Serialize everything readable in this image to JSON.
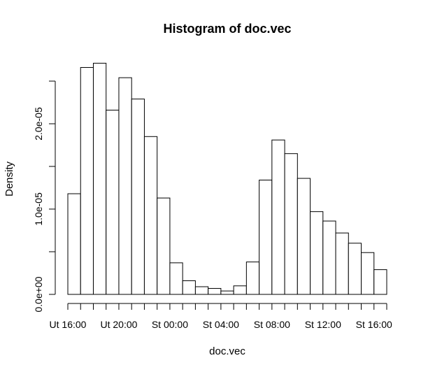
{
  "chart_data": {
    "type": "bar",
    "title": "Histogram of doc.vec",
    "xlabel": "doc.vec",
    "ylabel": "Density",
    "x_tick_labels": [
      "Ut 16:00",
      "Ut 20:00",
      "St 00:00",
      "St 04:00",
      "St 08:00",
      "St 12:00",
      "St 16:00"
    ],
    "y_tick_labels": [
      "0.0e+00",
      "1.0e-05",
      "2.0e-05"
    ],
    "y_ticks": [
      0,
      5e-06,
      1e-05,
      1.5e-05,
      2e-05,
      2.5e-05
    ],
    "bin_width_hours": 1,
    "bin_start_labels": [
      "Ut 16:00",
      "Ut 17:00",
      "Ut 18:00",
      "Ut 19:00",
      "Ut 20:00",
      "Ut 21:00",
      "Ut 22:00",
      "Ut 23:00",
      "St 00:00",
      "St 01:00",
      "St 02:00",
      "St 03:00",
      "St 04:00",
      "St 05:00",
      "St 06:00",
      "St 07:00",
      "St 08:00",
      "St 09:00",
      "St 10:00",
      "St 11:00",
      "St 12:00",
      "St 13:00",
      "St 14:00",
      "St 15:00",
      "St 16:00"
    ],
    "values": [
      1.18e-05,
      2.66e-05,
      2.71e-05,
      2.16e-05,
      2.54e-05,
      2.29e-05,
      1.85e-05,
      1.13e-05,
      3.7e-06,
      1.6e-06,
      9e-07,
      7e-07,
      4e-07,
      1e-06,
      3.8e-06,
      1.34e-05,
      1.81e-05,
      1.65e-05,
      1.36e-05,
      9.7e-06,
      8.6e-06,
      7.2e-06,
      6e-06,
      4.9e-06,
      2.9e-06
    ],
    "ylim": [
      0,
      2.5e-05
    ],
    "grid": false,
    "colors": {
      "fill": "#ffffff",
      "stroke": "#000000",
      "background": "#ffffff"
    }
  }
}
